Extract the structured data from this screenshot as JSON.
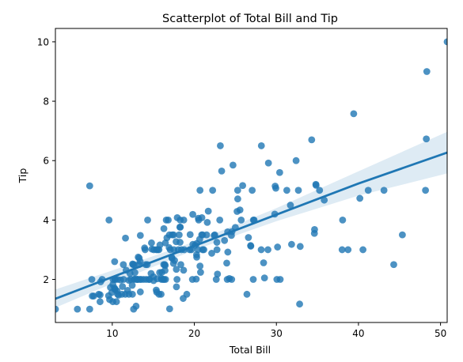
{
  "chart_data": {
    "type": "scatter",
    "title": "Scatterplot of Total Bill and Tip",
    "xlabel": "Total Bill",
    "ylabel": "Tip",
    "xlim": [
      3.07,
      50.81
    ],
    "ylim": [
      0.55,
      10.45
    ],
    "xticks": [
      10,
      20,
      30,
      40,
      50
    ],
    "yticks": [
      2,
      4,
      6,
      8,
      10
    ],
    "grid": false,
    "legend": "none",
    "colors": {
      "points": "#1f77b4",
      "line": "#1f77b4",
      "band": "#1f77b4"
    },
    "regression": {
      "x": [
        3.07,
        10,
        20,
        30,
        40,
        50.81
      ],
      "y": [
        1.35,
        2.08,
        3.13,
        4.18,
        5.23,
        6.27
      ],
      "ci_lower": [
        1.05,
        1.86,
        2.99,
        3.96,
        4.82,
        5.57
      ],
      "ci_upper": [
        1.66,
        2.3,
        3.27,
        4.4,
        5.64,
        6.97
      ]
    },
    "points": [
      [
        3.07,
        1.0
      ],
      [
        5.75,
        1.0
      ],
      [
        7.25,
        1.0
      ],
      [
        7.25,
        5.15
      ],
      [
        7.51,
        2.0
      ],
      [
        7.56,
        1.44
      ],
      [
        7.74,
        1.44
      ],
      [
        8.35,
        1.5
      ],
      [
        8.51,
        1.25
      ],
      [
        8.52,
        1.48
      ],
      [
        8.58,
        1.92
      ],
      [
        8.77,
        2.0
      ],
      [
        9.55,
        1.45
      ],
      [
        9.6,
        4.0
      ],
      [
        9.68,
        1.32
      ],
      [
        9.78,
        1.73
      ],
      [
        9.94,
        1.56
      ],
      [
        10.07,
        1.25
      ],
      [
        10.07,
        1.83
      ],
      [
        10.09,
        2.0
      ],
      [
        10.27,
        1.71
      ],
      [
        10.29,
        2.6
      ],
      [
        10.33,
        1.67
      ],
      [
        10.33,
        2.0
      ],
      [
        10.34,
        1.66
      ],
      [
        10.34,
        2.0
      ],
      [
        10.51,
        1.25
      ],
      [
        10.59,
        1.61
      ],
      [
        10.63,
        2.0
      ],
      [
        10.65,
        1.5
      ],
      [
        10.77,
        1.47
      ],
      [
        11.02,
        1.98
      ],
      [
        11.17,
        1.5
      ],
      [
        11.24,
        1.76
      ],
      [
        11.35,
        2.5
      ],
      [
        11.38,
        2.0
      ],
      [
        11.59,
        1.5
      ],
      [
        11.61,
        3.39
      ],
      [
        11.69,
        2.31
      ],
      [
        11.87,
        1.63
      ],
      [
        12.02,
        1.97
      ],
      [
        12.03,
        1.5
      ],
      [
        12.16,
        2.2
      ],
      [
        12.26,
        2.0
      ],
      [
        12.43,
        1.8
      ],
      [
        12.46,
        1.5
      ],
      [
        12.48,
        2.52
      ],
      [
        12.54,
        2.5
      ],
      [
        12.6,
        1.0
      ],
      [
        12.66,
        2.5
      ],
      [
        12.69,
        2.0
      ],
      [
        12.74,
        2.01
      ],
      [
        12.76,
        2.23
      ],
      [
        12.9,
        1.1
      ],
      [
        13.0,
        2.0
      ],
      [
        13.03,
        2.0
      ],
      [
        13.13,
        2.0
      ],
      [
        13.16,
        2.75
      ],
      [
        13.27,
        2.5
      ],
      [
        13.28,
        2.72
      ],
      [
        13.37,
        2.0
      ],
      [
        13.39,
        2.61
      ],
      [
        13.42,
        1.58
      ],
      [
        13.42,
        3.48
      ],
      [
        13.51,
        2.0
      ],
      [
        13.81,
        2.0
      ],
      [
        13.94,
        3.06
      ],
      [
        14.0,
        3.0
      ],
      [
        14.07,
        2.5
      ],
      [
        14.15,
        2.0
      ],
      [
        14.26,
        2.5
      ],
      [
        14.31,
        4.0
      ],
      [
        14.48,
        2.0
      ],
      [
        14.52,
        2.0
      ],
      [
        14.73,
        2.2
      ],
      [
        14.78,
        3.23
      ],
      [
        14.83,
        3.02
      ],
      [
        15.01,
        2.09
      ],
      [
        15.04,
        1.96
      ],
      [
        15.06,
        3.0
      ],
      [
        15.36,
        1.64
      ],
      [
        15.38,
        3.0
      ],
      [
        15.42,
        1.57
      ],
      [
        15.48,
        2.02
      ],
      [
        15.53,
        3.0
      ],
      [
        15.69,
        3.0
      ],
      [
        15.69,
        1.5
      ],
      [
        15.77,
        2.23
      ],
      [
        15.81,
        3.16
      ],
      [
        15.95,
        1.5
      ],
      [
        15.98,
        2.03
      ],
      [
        16.0,
        2.0
      ],
      [
        16.04,
        2.24
      ],
      [
        16.21,
        2.0
      ],
      [
        16.27,
        2.5
      ],
      [
        16.29,
        3.71
      ],
      [
        16.31,
        2.0
      ],
      [
        16.4,
        2.5
      ],
      [
        16.43,
        2.3
      ],
      [
        16.45,
        2.47
      ],
      [
        16.47,
        3.23
      ],
      [
        16.49,
        2.0
      ],
      [
        16.58,
        4.0
      ],
      [
        16.66,
        3.4
      ],
      [
        16.82,
        4.0
      ],
      [
        16.93,
        3.07
      ],
      [
        16.97,
        3.5
      ],
      [
        16.99,
        1.01
      ],
      [
        17.07,
        3.0
      ],
      [
        17.26,
        2.74
      ],
      [
        17.29,
        2.71
      ],
      [
        17.31,
        3.5
      ],
      [
        17.46,
        2.54
      ],
      [
        17.47,
        3.5
      ],
      [
        17.51,
        3.0
      ],
      [
        17.59,
        2.64
      ],
      [
        17.78,
        3.27
      ],
      [
        17.81,
        2.34
      ],
      [
        17.82,
        1.75
      ],
      [
        17.89,
        2.0
      ],
      [
        17.92,
        4.08
      ],
      [
        18.04,
        3.0
      ],
      [
        18.15,
        3.5
      ],
      [
        18.24,
        3.76
      ],
      [
        18.26,
        3.25
      ],
      [
        18.28,
        4.0
      ],
      [
        18.29,
        3.76
      ],
      [
        18.35,
        2.5
      ],
      [
        18.43,
        3.0
      ],
      [
        18.64,
        1.36
      ],
      [
        18.69,
        2.31
      ],
      [
        18.71,
        4.0
      ],
      [
        18.78,
        3.0
      ],
      [
        19.08,
        1.5
      ],
      [
        19.44,
        3.0
      ],
      [
        19.49,
        3.51
      ],
      [
        19.65,
        3.0
      ],
      [
        19.77,
        2.0
      ],
      [
        19.81,
        4.19
      ],
      [
        19.82,
        3.18
      ],
      [
        20.08,
        3.15
      ],
      [
        20.23,
        2.01
      ],
      [
        20.27,
        2.83
      ],
      [
        20.29,
        2.75
      ],
      [
        20.29,
        3.21
      ],
      [
        20.45,
        3.0
      ],
      [
        20.49,
        4.06
      ],
      [
        20.53,
        4.0
      ],
      [
        20.65,
        3.35
      ],
      [
        20.69,
        2.45
      ],
      [
        20.69,
        5.0
      ],
      [
        20.76,
        2.24
      ],
      [
        20.9,
        3.5
      ],
      [
        20.92,
        4.08
      ],
      [
        21.01,
        3.0
      ],
      [
        21.01,
        3.5
      ],
      [
        21.16,
        3.0
      ],
      [
        21.5,
        3.5
      ],
      [
        21.58,
        3.92
      ],
      [
        21.7,
        4.3
      ],
      [
        22.12,
        2.88
      ],
      [
        22.23,
        5.0
      ],
      [
        22.42,
        3.48
      ],
      [
        22.49,
        3.5
      ],
      [
        22.67,
        2.0
      ],
      [
        22.75,
        3.25
      ],
      [
        22.76,
        3.0
      ],
      [
        22.82,
        2.18
      ],
      [
        23.1,
        4.0
      ],
      [
        23.17,
        6.5
      ],
      [
        23.33,
        5.65
      ],
      [
        23.68,
        3.31
      ],
      [
        23.95,
        2.55
      ],
      [
        24.01,
        2.0
      ],
      [
        24.06,
        3.6
      ],
      [
        24.08,
        2.92
      ],
      [
        24.27,
        2.03
      ],
      [
        24.52,
        3.48
      ],
      [
        24.55,
        2.0
      ],
      [
        24.59,
        3.61
      ],
      [
        24.71,
        5.85
      ],
      [
        25.0,
        3.75
      ],
      [
        25.21,
        4.29
      ],
      [
        25.28,
        5.0
      ],
      [
        25.29,
        4.71
      ],
      [
        25.56,
        4.34
      ],
      [
        25.71,
        4.0
      ],
      [
        25.89,
        5.16
      ],
      [
        26.41,
        1.5
      ],
      [
        26.59,
        3.41
      ],
      [
        26.86,
        3.14
      ],
      [
        26.88,
        3.12
      ],
      [
        27.05,
        5.0
      ],
      [
        27.18,
        2.0
      ],
      [
        27.2,
        4.0
      ],
      [
        27.28,
        4.0
      ],
      [
        28.15,
        3.0
      ],
      [
        28.17,
        6.5
      ],
      [
        28.44,
        2.56
      ],
      [
        28.55,
        2.05
      ],
      [
        28.97,
        3.0
      ],
      [
        29.03,
        5.92
      ],
      [
        29.8,
        4.2
      ],
      [
        29.85,
        5.14
      ],
      [
        29.93,
        5.07
      ],
      [
        30.06,
        2.0
      ],
      [
        30.14,
        3.09
      ],
      [
        30.4,
        5.6
      ],
      [
        30.46,
        2.0
      ],
      [
        31.27,
        5.0
      ],
      [
        31.71,
        4.5
      ],
      [
        31.85,
        3.18
      ],
      [
        32.4,
        6.0
      ],
      [
        32.68,
        5.0
      ],
      [
        32.83,
        1.17
      ],
      [
        32.9,
        3.11
      ],
      [
        34.3,
        6.7
      ],
      [
        34.63,
        3.55
      ],
      [
        34.65,
        3.68
      ],
      [
        34.81,
        5.2
      ],
      [
        34.83,
        5.17
      ],
      [
        35.26,
        5.0
      ],
      [
        35.83,
        4.67
      ],
      [
        38.01,
        3.0
      ],
      [
        38.07,
        4.0
      ],
      [
        38.73,
        3.0
      ],
      [
        39.42,
        7.58
      ],
      [
        40.17,
        4.73
      ],
      [
        40.55,
        3.0
      ],
      [
        41.19,
        5.0
      ],
      [
        43.11,
        5.0
      ],
      [
        44.3,
        2.5
      ],
      [
        45.35,
        3.5
      ],
      [
        48.17,
        5.0
      ],
      [
        48.27,
        6.73
      ],
      [
        48.33,
        9.0
      ],
      [
        50.81,
        10.0
      ]
    ]
  }
}
